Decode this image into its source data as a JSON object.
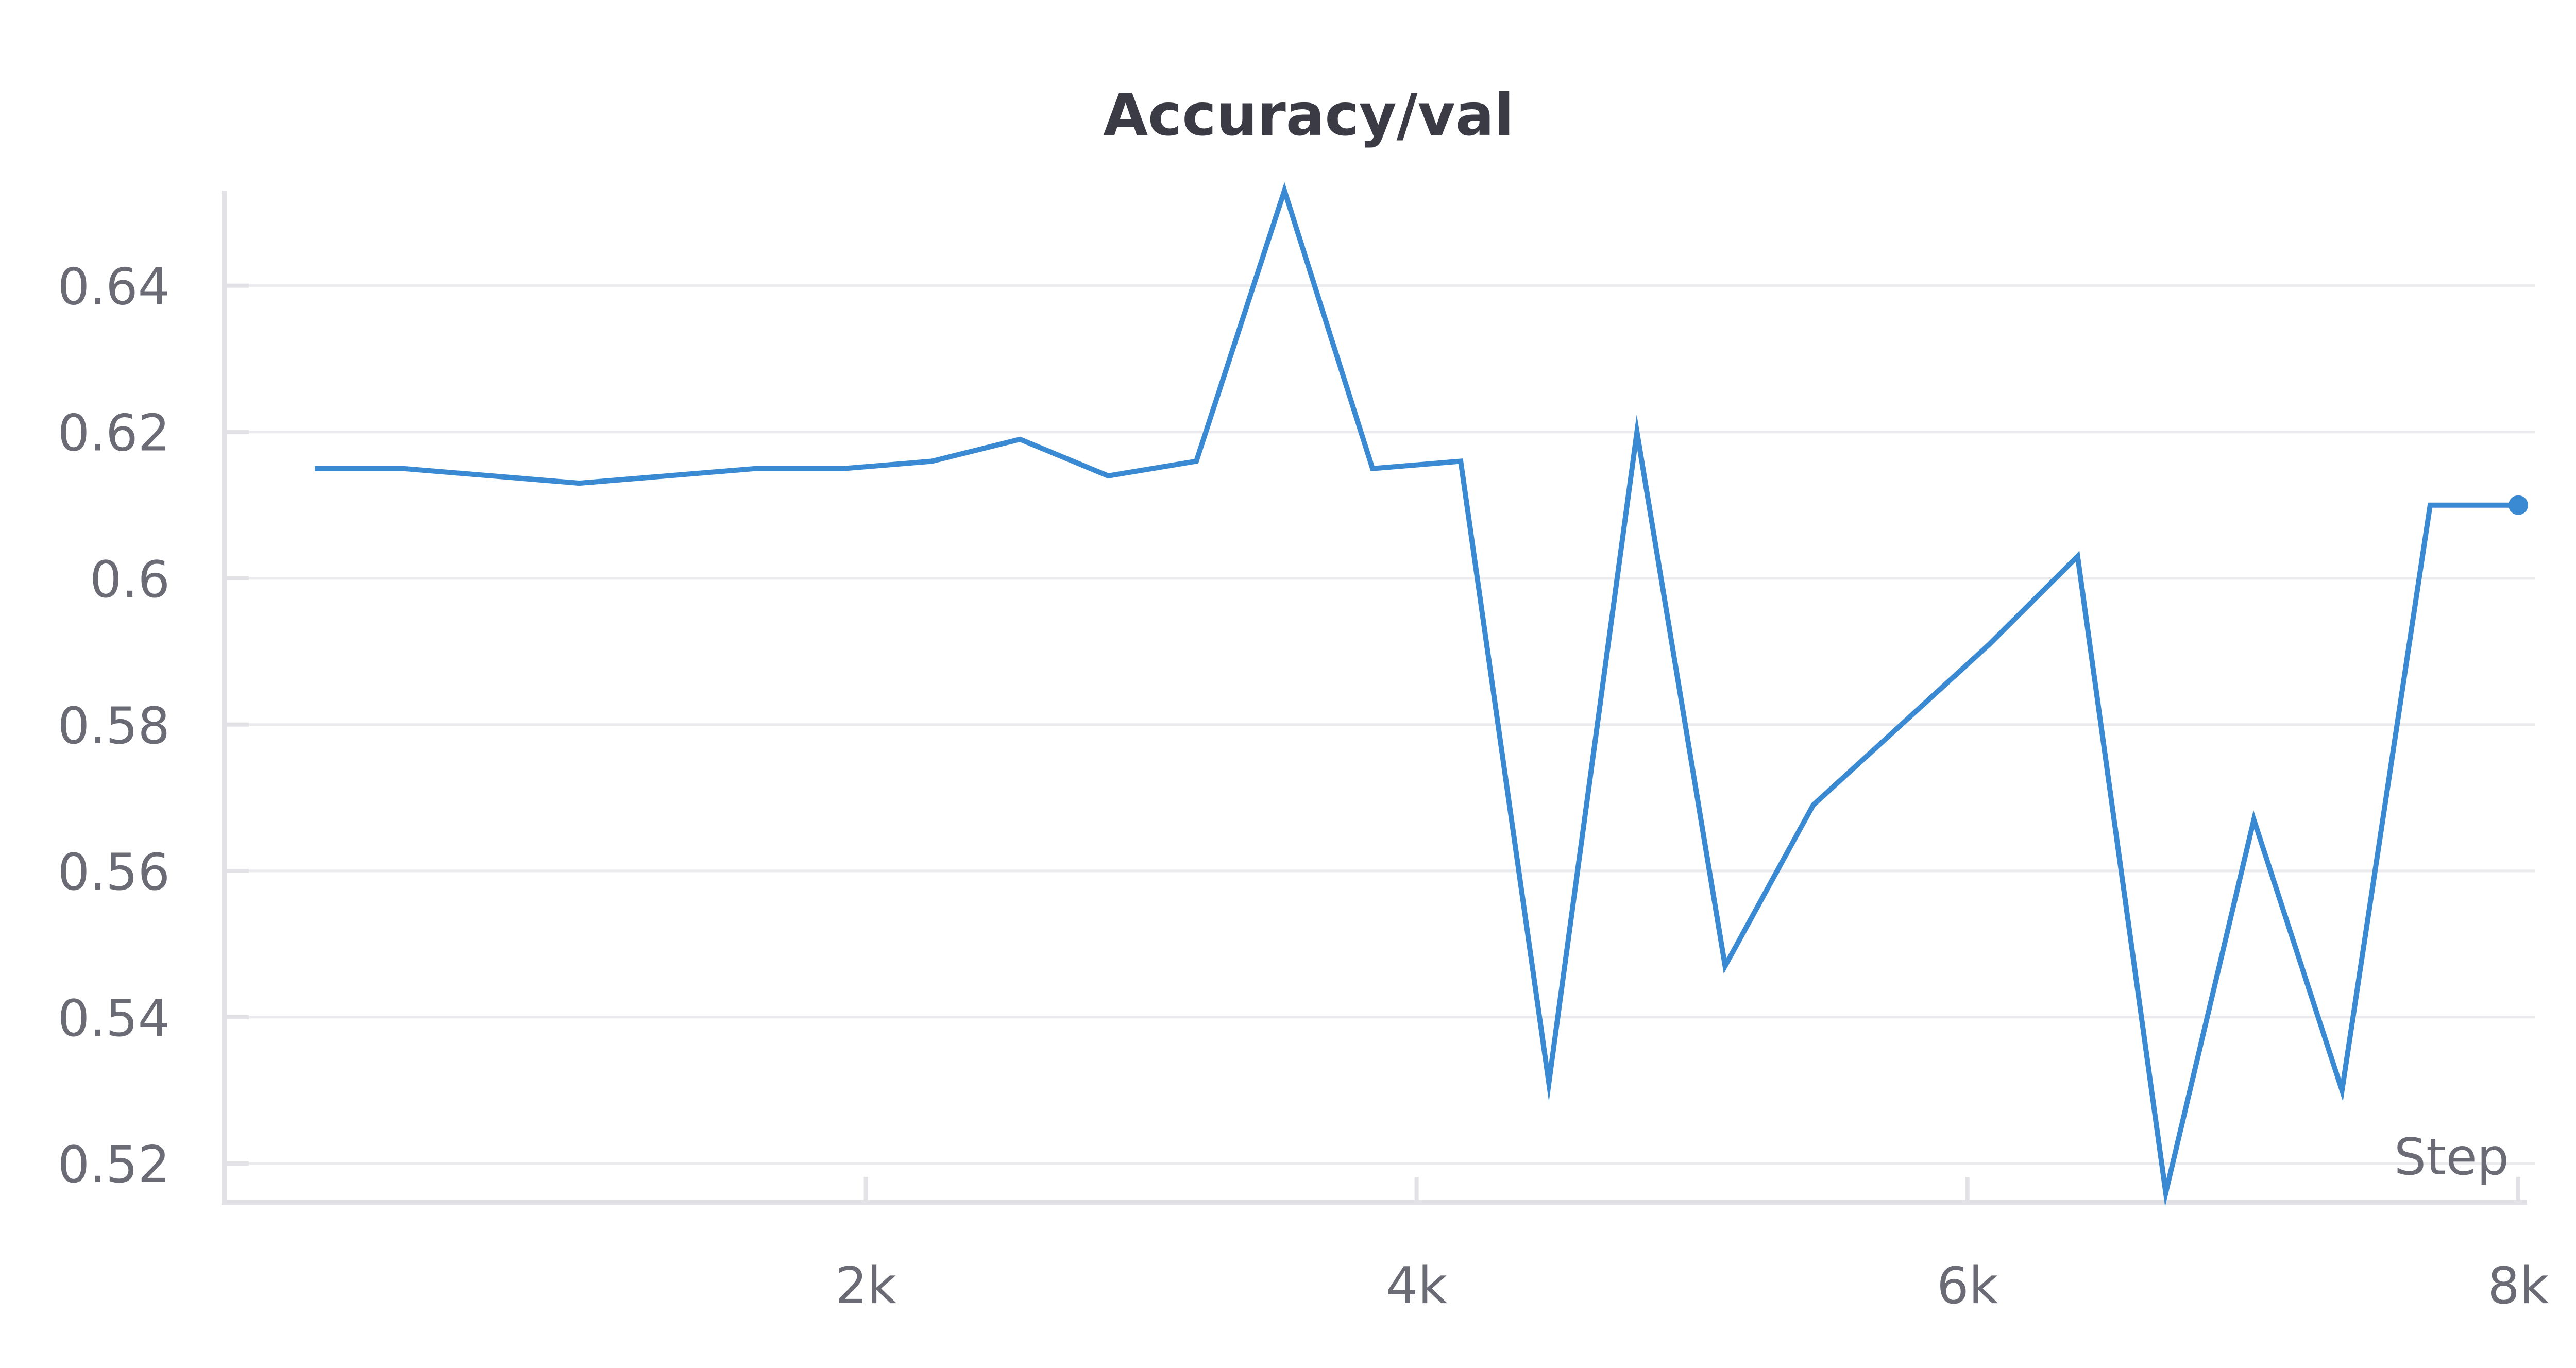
{
  "chart_data": {
    "type": "line",
    "title": "Accuracy/val",
    "xlabel": "Step",
    "ylabel": "",
    "xlim": [
      -330,
      8060
    ],
    "ylim": [
      0.515,
      0.653
    ],
    "x_ticks": [
      {
        "value": 2000,
        "label": "2k"
      },
      {
        "value": 4000,
        "label": "4k"
      },
      {
        "value": 6000,
        "label": "6k"
      },
      {
        "value": 8000,
        "label": "8k"
      }
    ],
    "y_ticks": [
      {
        "value": 0.52,
        "label": "0.52"
      },
      {
        "value": 0.54,
        "label": "0.54"
      },
      {
        "value": 0.56,
        "label": "0.56"
      },
      {
        "value": 0.58,
        "label": "0.58"
      },
      {
        "value": 0.6,
        "label": "0.6"
      },
      {
        "value": 0.62,
        "label": "0.62"
      },
      {
        "value": 0.64,
        "label": "0.64"
      }
    ],
    "grid": true,
    "series": [
      {
        "color": "#3a8ad3",
        "x": [
          0,
          320,
          960,
          1600,
          1920,
          2240,
          2560,
          2880,
          3200,
          3520,
          3840,
          4160,
          4480,
          4800,
          5120,
          5440,
          5760,
          6080,
          6400,
          6720,
          7040,
          7360,
          7680,
          8000
        ],
        "y": [
          0.615,
          0.615,
          0.613,
          0.615,
          0.615,
          0.616,
          0.619,
          0.614,
          0.616,
          0.653,
          0.615,
          0.616,
          0.531,
          0.62,
          0.547,
          0.569,
          0.58,
          0.591,
          0.603,
          0.516,
          0.567,
          0.53,
          0.61,
          0.61
        ]
      }
    ]
  }
}
